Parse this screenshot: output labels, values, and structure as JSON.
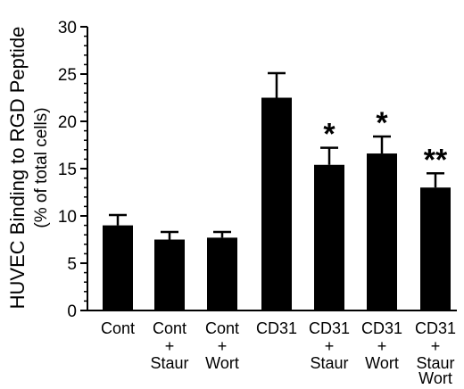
{
  "chart_data": {
    "type": "bar",
    "ylabel": "HUVEC Binding to RGD Peptide",
    "ylabel_sub": "(% of total cells)",
    "ylim": [
      0,
      30
    ],
    "yticks": [
      "0",
      "5",
      "10",
      "15",
      "20",
      "25",
      "30"
    ],
    "bar_color": "#000000",
    "categories": [
      {
        "lines": [
          "Cont"
        ]
      },
      {
        "lines": [
          "Cont",
          "+",
          "Staur"
        ]
      },
      {
        "lines": [
          "Cont",
          "+",
          "Wort"
        ]
      },
      {
        "lines": [
          "CD31"
        ]
      },
      {
        "lines": [
          "CD31",
          "+",
          "Staur"
        ]
      },
      {
        "lines": [
          "CD31",
          "+",
          "Wort"
        ]
      },
      {
        "lines": [
          "CD31",
          "+",
          "Staur",
          "Wort"
        ]
      }
    ],
    "values": [
      9.0,
      7.5,
      7.7,
      22.5,
      15.4,
      16.6,
      13.0
    ],
    "errors": [
      1.1,
      0.8,
      0.6,
      2.6,
      1.8,
      1.8,
      1.5
    ],
    "annotations": [
      "",
      "",
      "",
      "",
      "*",
      "*",
      "**"
    ]
  }
}
